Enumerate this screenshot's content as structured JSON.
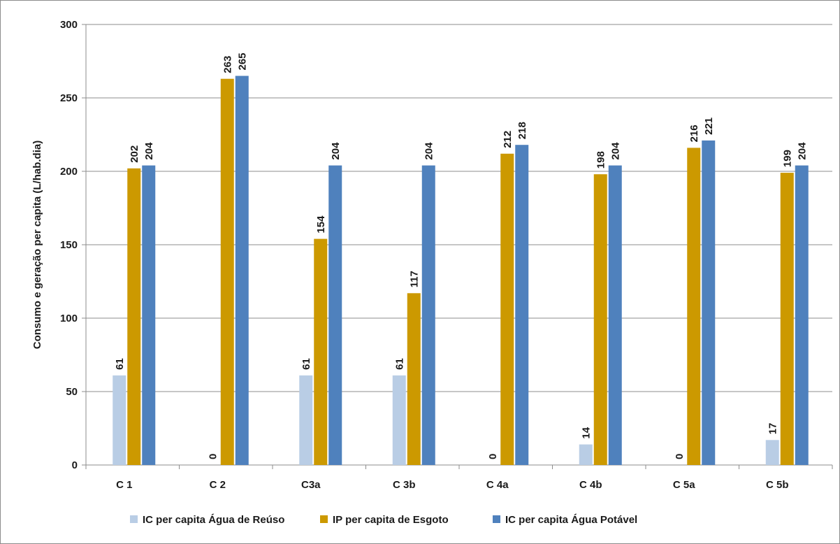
{
  "chart_data": {
    "type": "bar",
    "ylabel": "Consumo e geração per capita (L/hab.dia)",
    "xlabel": "",
    "ylim": [
      0,
      300
    ],
    "yticks": [
      0,
      50,
      100,
      150,
      200,
      250,
      300
    ],
    "grid": "horizontal",
    "legend_position": "bottom",
    "categories": [
      "C 1",
      "C 2",
      "C3a",
      "C 3b",
      "C 4a",
      "C 4b",
      "C 5a",
      "C 5b"
    ],
    "series": [
      {
        "name": "IC per capita Água de Reúso",
        "color": "#b9cde5",
        "values": [
          61,
          0,
          61,
          61,
          0,
          14,
          0,
          17
        ]
      },
      {
        "name": "IP per capita de Esgoto",
        "color": "#cc9900",
        "values": [
          202,
          263,
          154,
          117,
          212,
          198,
          216,
          199
        ]
      },
      {
        "name": "IC per capita Água Potável",
        "color": "#4f81bd",
        "values": [
          204,
          265,
          204,
          204,
          218,
          204,
          221,
          204
        ]
      }
    ]
  }
}
